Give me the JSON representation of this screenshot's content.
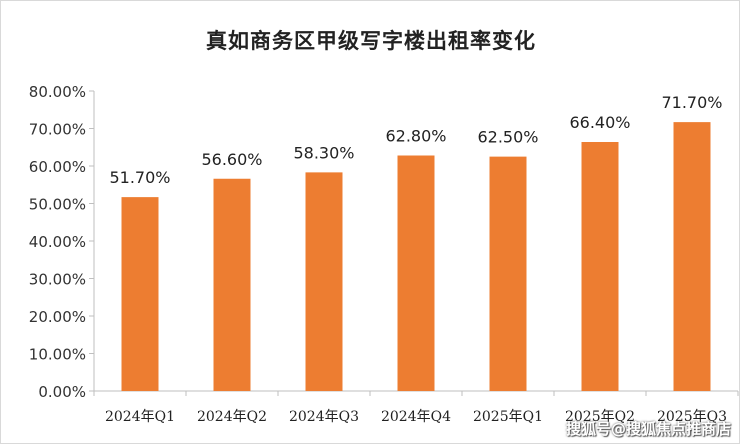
{
  "chart_data": {
    "type": "bar",
    "title": "真如商务区甲级写字楼出租率变化",
    "categories": [
      "2024年Q1",
      "2024年Q2",
      "2024年Q3",
      "2024年Q4",
      "2025年Q1",
      "2025年Q2",
      "2025年Q3"
    ],
    "values": [
      51.7,
      56.6,
      58.3,
      62.8,
      62.5,
      66.4,
      71.7
    ],
    "value_labels": [
      "51.70%",
      "56.60%",
      "58.30%",
      "62.80%",
      "62.50%",
      "66.40%",
      "71.70%"
    ],
    "ylim": [
      0,
      80
    ],
    "y_ticks": [
      0,
      10,
      20,
      30,
      40,
      50,
      60,
      70,
      80
    ],
    "y_tick_labels": [
      "0.00%",
      "10.00%",
      "20.00%",
      "30.00%",
      "40.00%",
      "50.00%",
      "60.00%",
      "70.00%",
      "80.00%"
    ],
    "grid": false,
    "legend": "none",
    "bar_color": "#ED7D31",
    "xlabel": "",
    "ylabel": ""
  },
  "watermark": "搜狐号@搜狐焦点推商店"
}
